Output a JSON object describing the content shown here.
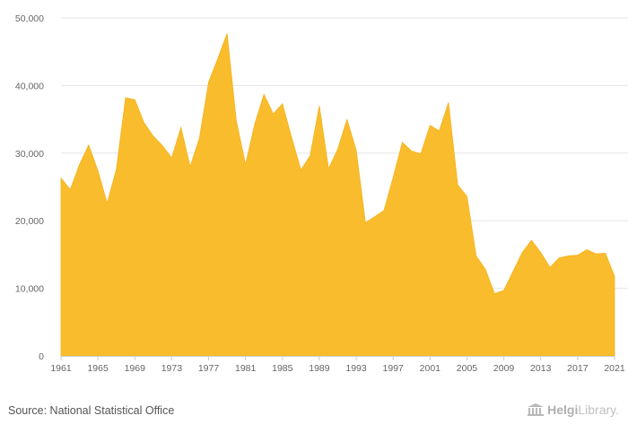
{
  "chart_data": {
    "type": "area",
    "title": "",
    "xlabel": "",
    "ylabel": "",
    "xlim": [
      1961,
      2021
    ],
    "ylim": [
      0,
      50000
    ],
    "yticks": [
      0,
      10000,
      20000,
      30000,
      40000,
      50000
    ],
    "ytick_labels": [
      "0",
      "10,000",
      "20,000",
      "30,000",
      "40,000",
      "50,000"
    ],
    "xticks": [
      1961,
      1965,
      1969,
      1973,
      1977,
      1981,
      1985,
      1989,
      1993,
      1997,
      2001,
      2005,
      2009,
      2013,
      2017,
      2021
    ],
    "grid": "horizontal",
    "legend": "none",
    "color": "#f9bc2c",
    "x": [
      1961,
      1962,
      1963,
      1964,
      1965,
      1966,
      1967,
      1968,
      1969,
      1970,
      1971,
      1972,
      1973,
      1974,
      1975,
      1976,
      1977,
      1978,
      1979,
      1980,
      1981,
      1982,
      1983,
      1984,
      1985,
      1986,
      1987,
      1988,
      1989,
      1990,
      1991,
      1992,
      1993,
      1994,
      1995,
      1996,
      1997,
      1998,
      1999,
      2000,
      2001,
      2002,
      2003,
      2004,
      2005,
      2006,
      2007,
      2008,
      2009,
      2010,
      2011,
      2012,
      2013,
      2014,
      2015,
      2016,
      2017,
      2018,
      2019,
      2020,
      2021
    ],
    "values": [
      26300,
      24600,
      28300,
      31200,
      27400,
      22600,
      27600,
      38200,
      37900,
      34500,
      32500,
      31100,
      29300,
      33800,
      28000,
      32200,
      40500,
      44000,
      47700,
      34800,
      28300,
      34300,
      38700,
      35800,
      37300,
      32300,
      27500,
      29600,
      37000,
      27700,
      30600,
      35000,
      30400,
      19700,
      20600,
      21500,
      26400,
      31600,
      30300,
      29900,
      34100,
      33300,
      37500,
      25300,
      23600,
      14800,
      12800,
      9200,
      9700,
      12500,
      15300,
      17100,
      15300,
      13100,
      14500,
      14800,
      14900,
      15700,
      15100,
      15200,
      11800
    ]
  },
  "footer": {
    "source": "Source: National Statistical Office",
    "brand_name": "Helgi",
    "brand_suffix": "Library."
  }
}
